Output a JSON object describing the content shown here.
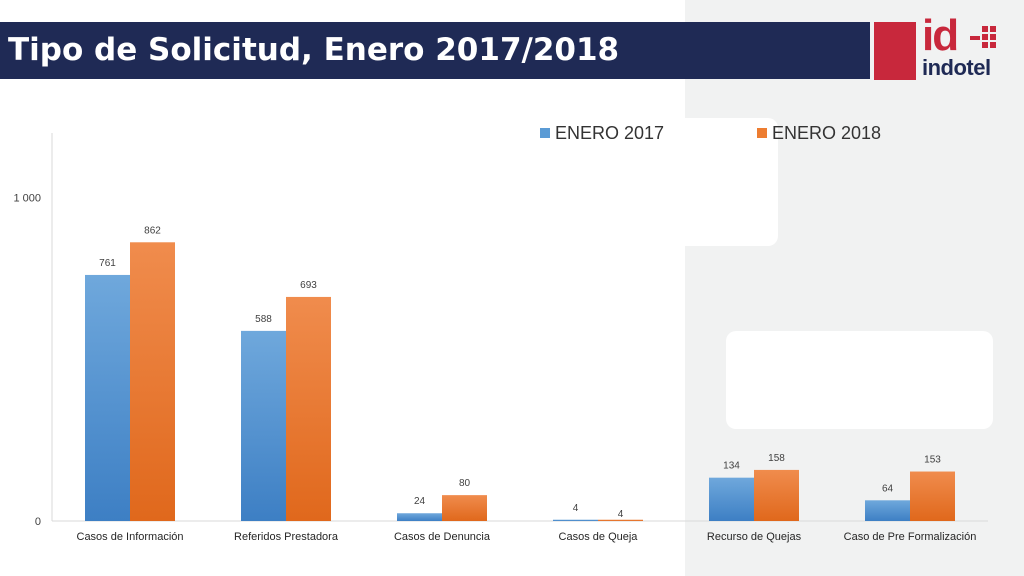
{
  "header": {
    "title": "Tipo de Solicitud, Enero 2017/2018"
  },
  "logo": {
    "mark": "id",
    "name": "indotel",
    "color": "#c8283c",
    "name_color": "#1f2a55"
  },
  "chart_data": {
    "type": "bar",
    "categories": [
      "Casos de Información",
      "Referidos Prestadora",
      "Casos de Denuncia",
      "Casos de Queja",
      "Recurso de Quejas",
      "Caso de Pre Formalización"
    ],
    "series": [
      {
        "name": "ENERO 2017",
        "values": [
          761,
          588,
          24,
          4,
          134,
          64
        ],
        "color": "#5b9bd5"
      },
      {
        "name": "ENERO 2018",
        "values": [
          862,
          693,
          80,
          4,
          158,
          153
        ],
        "color": "#ed7d31"
      }
    ],
    "ylim": [
      0,
      1200
    ],
    "yticks": [
      0,
      1000
    ],
    "ytick_labels": [
      "0",
      "1 000"
    ],
    "legend": "top-right",
    "grid": false,
    "data_labels": true
  }
}
